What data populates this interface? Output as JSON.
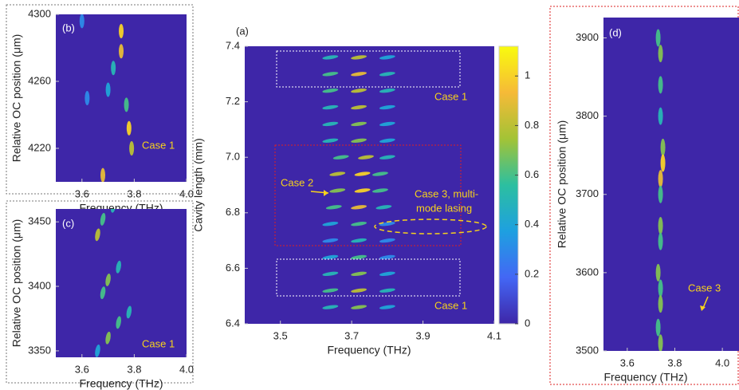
{
  "chart_data": [
    {
      "type": "heatmap",
      "panel_label": "(a)",
      "xlabel": "Frequency (THz)",
      "ylabel": "Cavity length (mm)",
      "xlim": [
        3.4,
        4.1
      ],
      "ylim": [
        6.4,
        7.4
      ],
      "xticks": [
        3.5,
        3.7,
        3.9,
        4.1
      ],
      "yticks": [
        6.4,
        6.6,
        6.8,
        {
          "value": 7,
          "label": "7.0"
        },
        7.2,
        7.4
      ],
      "clim": [
        0,
        1.12
      ],
      "cticks": [
        0,
        0.2,
        0.4,
        0.6,
        0.8,
        1
      ],
      "colormap": [
        "#3e26a8",
        "#4367f5",
        "#1ea0e0",
        "#2cbfa0",
        "#a3c336",
        "#f6ba37",
        "#f9fb0e"
      ],
      "x": [
        3.64,
        3.72,
        3.8,
        3.64,
        3.72,
        3.8,
        3.64,
        3.72,
        3.8,
        3.64,
        3.72,
        3.8,
        3.64,
        3.72,
        3.8,
        3.64,
        3.72,
        3.8,
        3.65,
        3.72,
        3.79,
        3.66,
        3.73,
        3.78,
        3.66,
        3.73,
        3.78,
        3.67,
        3.74,
        3.8,
        3.64,
        3.72,
        3.8,
        3.64,
        3.72,
        3.8,
        3.64,
        3.72,
        3.8,
        3.64,
        3.72,
        3.8,
        3.64,
        3.72,
        3.8,
        3.64,
        3.72,
        3.8
      ],
      "y": [
        6.46,
        6.46,
        6.46,
        6.52,
        6.52,
        6.52,
        6.58,
        6.58,
        6.58,
        6.64,
        6.64,
        6.64,
        6.7,
        6.7,
        6.7,
        6.76,
        6.76,
        6.76,
        6.82,
        6.82,
        6.82,
        6.88,
        6.88,
        6.88,
        6.94,
        6.94,
        6.94,
        7.0,
        7.0,
        7.0,
        7.06,
        7.06,
        7.06,
        7.12,
        7.12,
        7.12,
        7.18,
        7.18,
        7.18,
        7.24,
        7.24,
        7.24,
        7.3,
        7.3,
        7.3,
        7.36,
        7.36,
        7.36
      ],
      "values": [
        0.5,
        0.7,
        0.4,
        0.6,
        0.8,
        0.5,
        0.5,
        0.7,
        0.4,
        0.4,
        0.6,
        0.3,
        0.3,
        0.5,
        0.3,
        0.4,
        0.6,
        0.3,
        0.6,
        0.9,
        0.5,
        0.7,
        1.0,
        0.6,
        0.8,
        1.0,
        0.6,
        0.6,
        0.8,
        0.5,
        0.5,
        0.7,
        0.4,
        0.5,
        0.7,
        0.4,
        0.5,
        0.8,
        0.4,
        0.6,
        0.8,
        0.5,
        0.6,
        0.9,
        0.5,
        0.5,
        0.8,
        0.4
      ],
      "annotations": [
        "Case 1",
        "Case 1",
        "Case 2",
        [
          "Case 3, multi-",
          "mode lasing"
        ]
      ]
    },
    {
      "type": "heatmap",
      "panel_label": "(b)",
      "xlabel": "Frequency (THz)",
      "ylabel": "Relative OC position (μm)",
      "xlim": [
        3.5,
        4.0
      ],
      "ylim": [
        4200,
        4300
      ],
      "xticks": [
        3.6,
        3.8,
        {
          "value": 4,
          "label": "4.0"
        }
      ],
      "yticks": [
        4220,
        4260,
        4300
      ],
      "x": [
        3.75,
        3.75,
        3.77,
        3.78,
        3.79,
        3.68,
        3.72,
        3.7,
        3.6,
        3.62
      ],
      "y": [
        4290,
        4278,
        4246,
        4232,
        4220,
        4204,
        4268,
        4255,
        4296,
        4250
      ],
      "values": [
        1.0,
        0.9,
        0.6,
        1.0,
        0.8,
        0.9,
        0.5,
        0.4,
        0.3,
        0.3
      ],
      "annotations": [
        "Case 1"
      ]
    },
    {
      "type": "heatmap",
      "panel_label": "(c)",
      "xlabel": "Frequency (THz)",
      "ylabel": "Relative OC position (μm)",
      "xlim": [
        3.5,
        4.0
      ],
      "ylim": [
        3345,
        3460
      ],
      "xticks": [
        3.6,
        3.8,
        {
          "value": 4,
          "label": "4.0"
        }
      ],
      "yticks": [
        3350,
        3400,
        3450
      ],
      "x": [
        3.66,
        3.68,
        3.72,
        3.7,
        3.74,
        3.68,
        3.7,
        3.74,
        3.78,
        3.66
      ],
      "y": [
        3440,
        3452,
        3462,
        3405,
        3415,
        3395,
        3360,
        3372,
        3380,
        3350
      ],
      "values": [
        0.8,
        0.6,
        0.5,
        0.7,
        0.5,
        0.6,
        0.7,
        0.6,
        0.5,
        0.4
      ],
      "annotations": [
        "Case 1"
      ]
    },
    {
      "type": "heatmap",
      "panel_label": "(d)",
      "xlabel": "Frequency (THz)",
      "ylabel": "Relative OC position (μm)",
      "xlim": [
        3.5,
        4.07
      ],
      "ylim": [
        3500,
        3926
      ],
      "xticks": [
        3.6,
        3.8,
        {
          "value": 4,
          "label": "4.0"
        }
      ],
      "yticks": [
        3500,
        3600,
        3700,
        3800,
        3900
      ],
      "x": [
        3.73,
        3.74,
        3.74,
        3.74,
        3.75,
        3.75,
        3.74,
        3.74,
        3.74,
        3.74,
        3.73,
        3.74,
        3.74,
        3.73,
        3.74
      ],
      "y": [
        3900,
        3880,
        3840,
        3800,
        3760,
        3740,
        3720,
        3700,
        3660,
        3640,
        3600,
        3580,
        3560,
        3530,
        3510
      ],
      "values": [
        0.6,
        0.7,
        0.6,
        0.5,
        0.7,
        1.0,
        0.9,
        0.6,
        0.7,
        0.6,
        0.7,
        0.6,
        0.7,
        0.6,
        0.7
      ],
      "annotations": [
        "Case 3"
      ]
    }
  ]
}
